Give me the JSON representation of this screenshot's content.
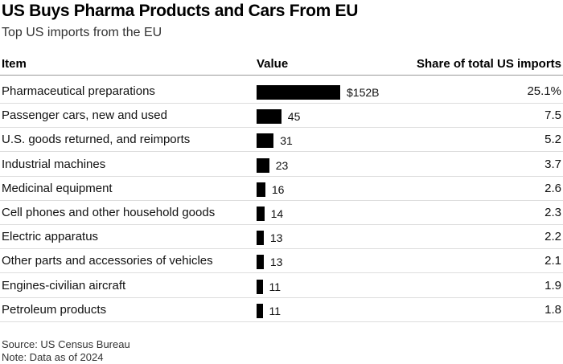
{
  "chart_data": {
    "type": "table",
    "title": "US Buys Pharma Products and Cars From EU",
    "subtitle": "Top US imports from the EU",
    "columns": [
      "Item",
      "Value",
      "Share of total US imports"
    ],
    "value_max": 152,
    "rows": [
      {
        "item": "Pharmaceutical preparations",
        "value": 152,
        "value_label": "$152B",
        "share": "25.1%"
      },
      {
        "item": "Passenger cars, new and used",
        "value": 45,
        "value_label": "45",
        "share": "7.5"
      },
      {
        "item": "U.S. goods returned, and reimports",
        "value": 31,
        "value_label": "31",
        "share": "5.2"
      },
      {
        "item": "Industrial machines",
        "value": 23,
        "value_label": "23",
        "share": "3.7"
      },
      {
        "item": "Medicinal equipment",
        "value": 16,
        "value_label": "16",
        "share": "2.6"
      },
      {
        "item": "Cell phones and other household goods",
        "value": 14,
        "value_label": "14",
        "share": "2.3"
      },
      {
        "item": "Electric apparatus",
        "value": 13,
        "value_label": "13",
        "share": "2.2"
      },
      {
        "item": "Other parts and accessories of vehicles",
        "value": 13,
        "value_label": "13",
        "share": "2.1"
      },
      {
        "item": "Engines-civilian aircraft",
        "value": 11,
        "value_label": "11",
        "share": "1.9"
      },
      {
        "item": "Petroleum products",
        "value": 11,
        "value_label": "11",
        "share": "1.8"
      }
    ],
    "source": "Source: US Census Bureau",
    "note": "Note: Data as of 2024",
    "bar_color": "#000000"
  }
}
